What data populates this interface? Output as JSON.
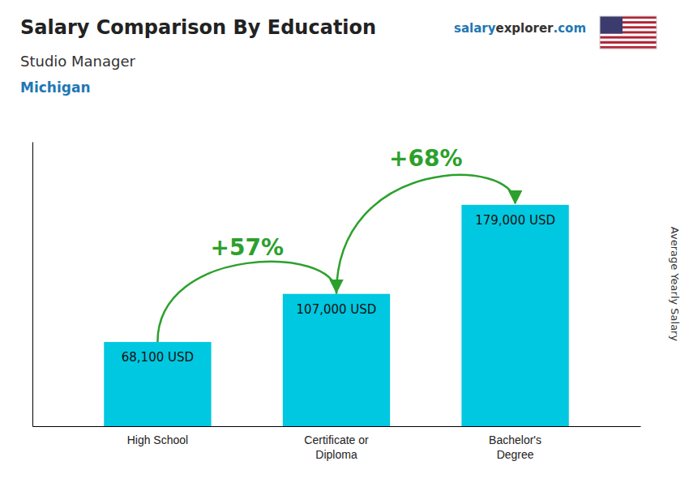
{
  "chart_data": {
    "type": "bar",
    "title": "Salary Comparison By Education",
    "subtitle": [
      "Studio Manager",
      "Michigan"
    ],
    "brand": [
      "salary",
      "explorer",
      ".com"
    ],
    "ylabel": "Average Yearly Salary",
    "categories": [
      "High School",
      "Certificate or\nDiploma",
      "Bachelor's\nDegree"
    ],
    "values": [
      68100,
      107000,
      179000
    ],
    "value_labels": [
      "68,100 USD",
      "107,000 USD",
      "179,000 USD"
    ],
    "annotations": [
      "+57%",
      "+68%"
    ],
    "color": "#00c8e0",
    "ylim": [
      0,
      230000
    ],
    "yticks": [],
    "tick_labels": "x",
    "data_labels": true,
    "grid": false
  }
}
